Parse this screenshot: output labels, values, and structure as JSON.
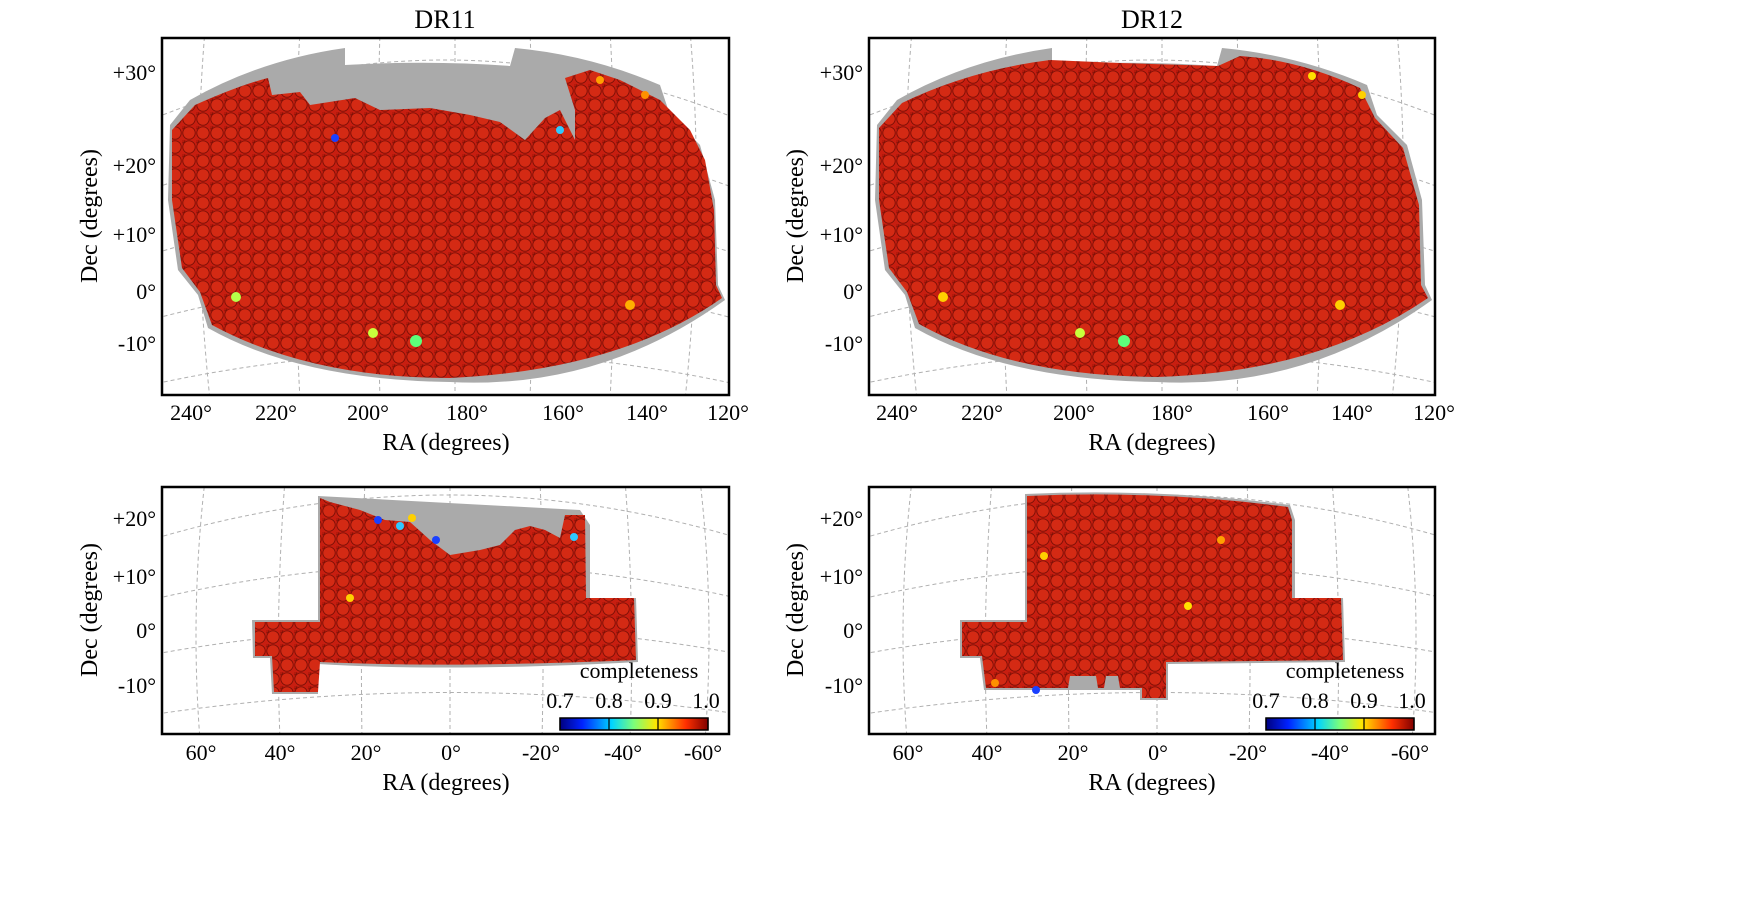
{
  "chart_data": [
    {
      "type": "map",
      "title": "DR11",
      "xlabel": "RA (degrees)",
      "ylabel": "Dec (degrees)",
      "x_ticks": [
        "240°",
        "220°",
        "200°",
        "180°",
        "160°",
        "140°",
        "120°"
      ],
      "y_ticks": [
        "+30°",
        "+20°",
        "+10°",
        "0°",
        "-10°"
      ]
    },
    {
      "type": "map",
      "title": "DR12",
      "xlabel": "RA (degrees)",
      "ylabel": "Dec (degrees)",
      "x_ticks": [
        "240°",
        "220°",
        "200°",
        "180°",
        "160°",
        "140°",
        "120°"
      ],
      "y_ticks": [
        "+30°",
        "+20°",
        "+10°",
        "0°",
        "-10°"
      ]
    },
    {
      "type": "map",
      "title": "",
      "xlabel": "RA (degrees)",
      "ylabel": "Dec (degrees)",
      "x_ticks": [
        "60°",
        "40°",
        "20°",
        "0°",
        "-20°",
        "-40°",
        "-60°"
      ],
      "y_ticks": [
        "+20°",
        "+10°",
        "0°",
        "-10°"
      ],
      "colorbar": {
        "label": "completeness",
        "ticks": [
          "0.7",
          "0.8",
          "0.9",
          "1.0"
        ]
      }
    },
    {
      "type": "map",
      "title": "",
      "xlabel": "RA (degrees)",
      "ylabel": "Dec (degrees)",
      "x_ticks": [
        "60°",
        "40°",
        "20°",
        "0°",
        "-20°",
        "-40°",
        "-60°"
      ],
      "y_ticks": [
        "+20°",
        "+10°",
        "0°",
        "-10°"
      ],
      "colorbar": {
        "label": "completeness",
        "ticks": [
          "0.7",
          "0.8",
          "0.9",
          "1.0"
        ]
      }
    }
  ],
  "colors": {
    "survey_red": "#c81e10",
    "survey_dark": "#8a1208",
    "footprint_gray": "#aaaaaa",
    "grid": "#b0b0b0"
  }
}
